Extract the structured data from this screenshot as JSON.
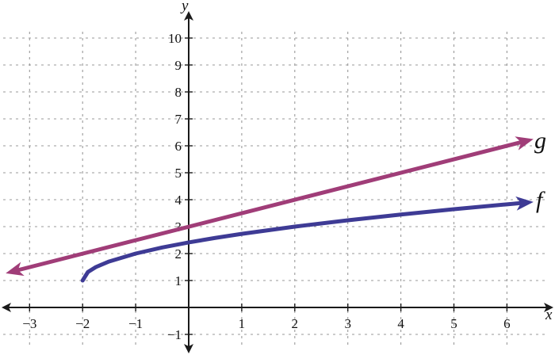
{
  "chart_data": {
    "type": "line",
    "xlabel": "x",
    "ylabel": "y",
    "xlim": [
      -3.5,
      6.8
    ],
    "ylim": [
      -1.6,
      11
    ],
    "x_ticks": [
      -3,
      -2,
      -1,
      0,
      1,
      2,
      3,
      4,
      5,
      6
    ],
    "x_tick_labels": [
      "−3",
      "−2",
      "−1",
      "",
      "1",
      "2",
      "3",
      "4",
      "5",
      "6"
    ],
    "y_ticks": [
      -1,
      1,
      2,
      3,
      4,
      5,
      6,
      7,
      8,
      9,
      10
    ],
    "y_tick_labels": [
      "−1",
      "1",
      "2",
      "3",
      "4",
      "5",
      "6",
      "7",
      "8",
      "9",
      "10"
    ],
    "grid": true,
    "series": [
      {
        "name": "g",
        "color": "#a03d78",
        "x": [
          -3.45,
          -2,
          -1,
          0,
          1,
          2,
          3,
          4,
          5,
          6,
          6.5
        ],
        "y": [
          1.27,
          2,
          2.5,
          3,
          3.5,
          4,
          4.5,
          5,
          5.5,
          6,
          6.25
        ]
      },
      {
        "name": "f",
        "color": "#3e3b95",
        "x": [
          -2,
          -1.9,
          -1.75,
          -1.5,
          -1,
          -0.5,
          0,
          0.5,
          1,
          2,
          3,
          4,
          5,
          6,
          6.5
        ],
        "y": [
          1,
          1.316,
          1.5,
          1.707,
          2,
          2.225,
          2.414,
          2.581,
          2.732,
          3,
          3.236,
          3.449,
          3.646,
          3.828,
          3.915
        ]
      }
    ]
  }
}
